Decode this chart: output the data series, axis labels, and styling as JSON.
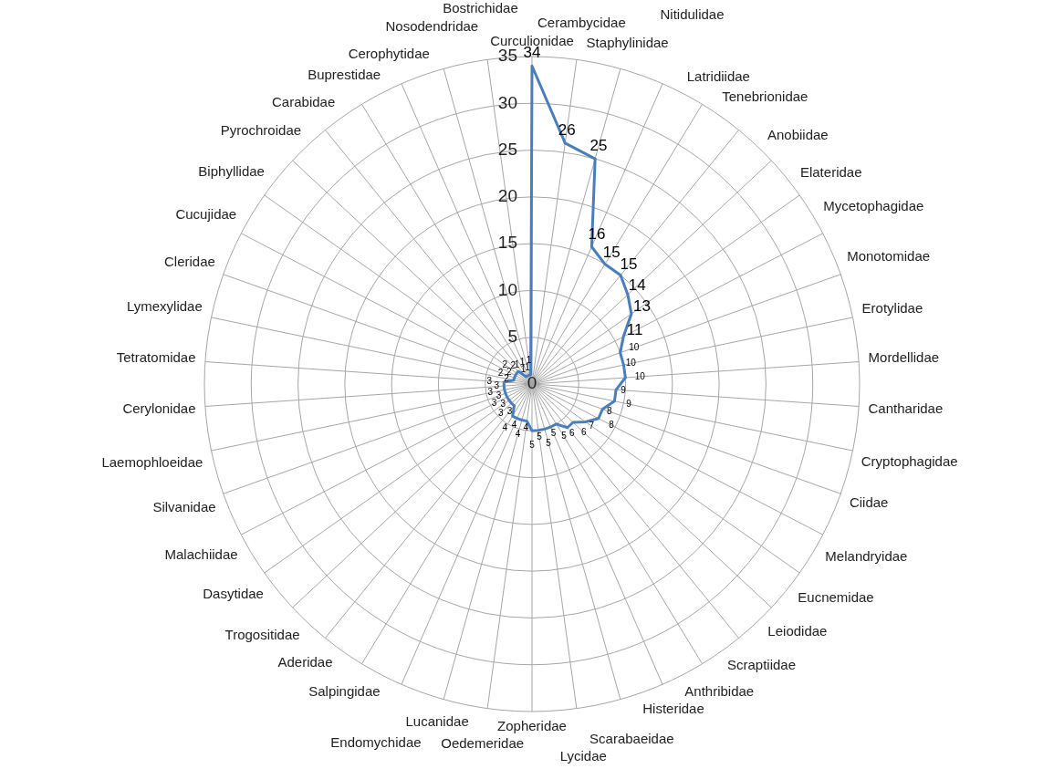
{
  "chart_data": {
    "type": "radar",
    "categories": [
      "Curculionidae",
      "Cerambycidae",
      "Staphylinidae",
      "Nitidulidae",
      "Latridiidae",
      "Tenebrionidae",
      "Anobiidae",
      "Elateridae",
      "Mycetophagidae",
      "Monotomidae",
      "Erotylidae",
      "Mordellidae",
      "Cantharidae",
      "Cryptophagidae",
      "Ciidae",
      "Melandryidae",
      "Eucnemidae",
      "Leiodidae",
      "Scraptiidae",
      "Anthribidae",
      "Histeridae",
      "Scarabaeidae",
      "Lycidae",
      "Zopheridae",
      "Oedemeridae",
      "Lucanidae",
      "Endomychidae",
      "Salpingidae",
      "Aderidae",
      "Trogositidae",
      "Dasytidae",
      "Malachiidae",
      "Silvanidae",
      "Laemophloeidae",
      "Cerylonidae",
      "Tetratomidae",
      "Lymexylidae",
      "Cleridae",
      "Cucujidae",
      "Biphyllidae",
      "Pyrochroidae",
      "Carabidae",
      "Buprestidae",
      "Cerophytidae",
      "Nosodendridae",
      "Bostrichidae"
    ],
    "series": [
      {
        "color": "#4a7ebb",
        "values": [
          34,
          26,
          25,
          16,
          15,
          15,
          14,
          13,
          11,
          10,
          10,
          10,
          9,
          9,
          8,
          8,
          7,
          6,
          6,
          5,
          5,
          5,
          5,
          5,
          4,
          4,
          4,
          4,
          3,
          3,
          3,
          3,
          3,
          3,
          3,
          3,
          2,
          2,
          2,
          2,
          2,
          1,
          1,
          1,
          1,
          1
        ]
      }
    ],
    "ylim": [
      0,
      35
    ],
    "yticks": [
      0,
      5,
      10,
      15,
      20,
      25,
      30,
      35
    ],
    "grid": true,
    "legend": false,
    "marker": "none",
    "line_style": "solid",
    "data_labels": true
  }
}
